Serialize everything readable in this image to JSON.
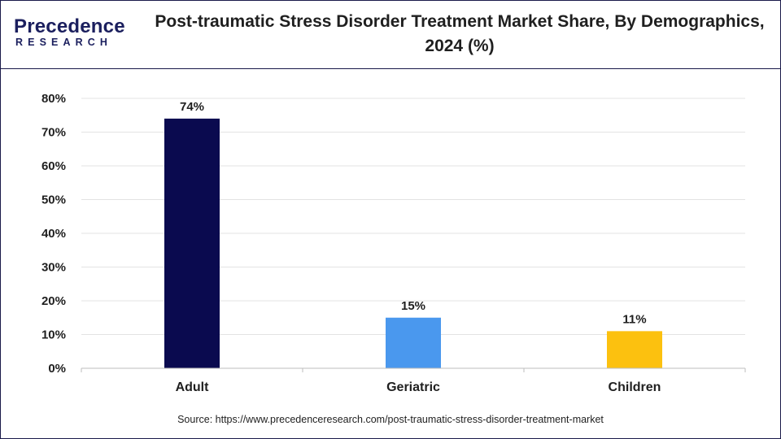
{
  "header": {
    "logo_text": "Precedence",
    "logo_subtext": "RESEARCH",
    "title": "Post-traumatic Stress Disorder Treatment Market Share, By Demographics, 2024 (%)"
  },
  "source": "Source: https://www.precedenceresearch.com/post-traumatic-stress-disorder-treatment-market",
  "colors": {
    "border": "#1a1a4a",
    "grid": "#e3e3e3",
    "axis": "#bdbdbd",
    "text": "#1f1f1f"
  },
  "chart_data": {
    "type": "bar",
    "title": "Post-traumatic Stress Disorder Treatment Market Share, By Demographics, 2024 (%)",
    "categories": [
      "Adult",
      "Geriatric",
      "Children"
    ],
    "values": [
      74,
      15,
      11
    ],
    "value_labels": [
      "74%",
      "15%",
      "11%"
    ],
    "bar_colors": [
      "#0a0a4f",
      "#4a98ee",
      "#fcc10f"
    ],
    "xlabel": "",
    "ylabel": "",
    "ylim": [
      0,
      80
    ],
    "yticks": [
      0,
      10,
      20,
      30,
      40,
      50,
      60,
      70,
      80
    ],
    "ytick_labels": [
      "0%",
      "10%",
      "20%",
      "30%",
      "40%",
      "50%",
      "60%",
      "70%",
      "80%"
    ],
    "grid": true,
    "legend": "none"
  }
}
